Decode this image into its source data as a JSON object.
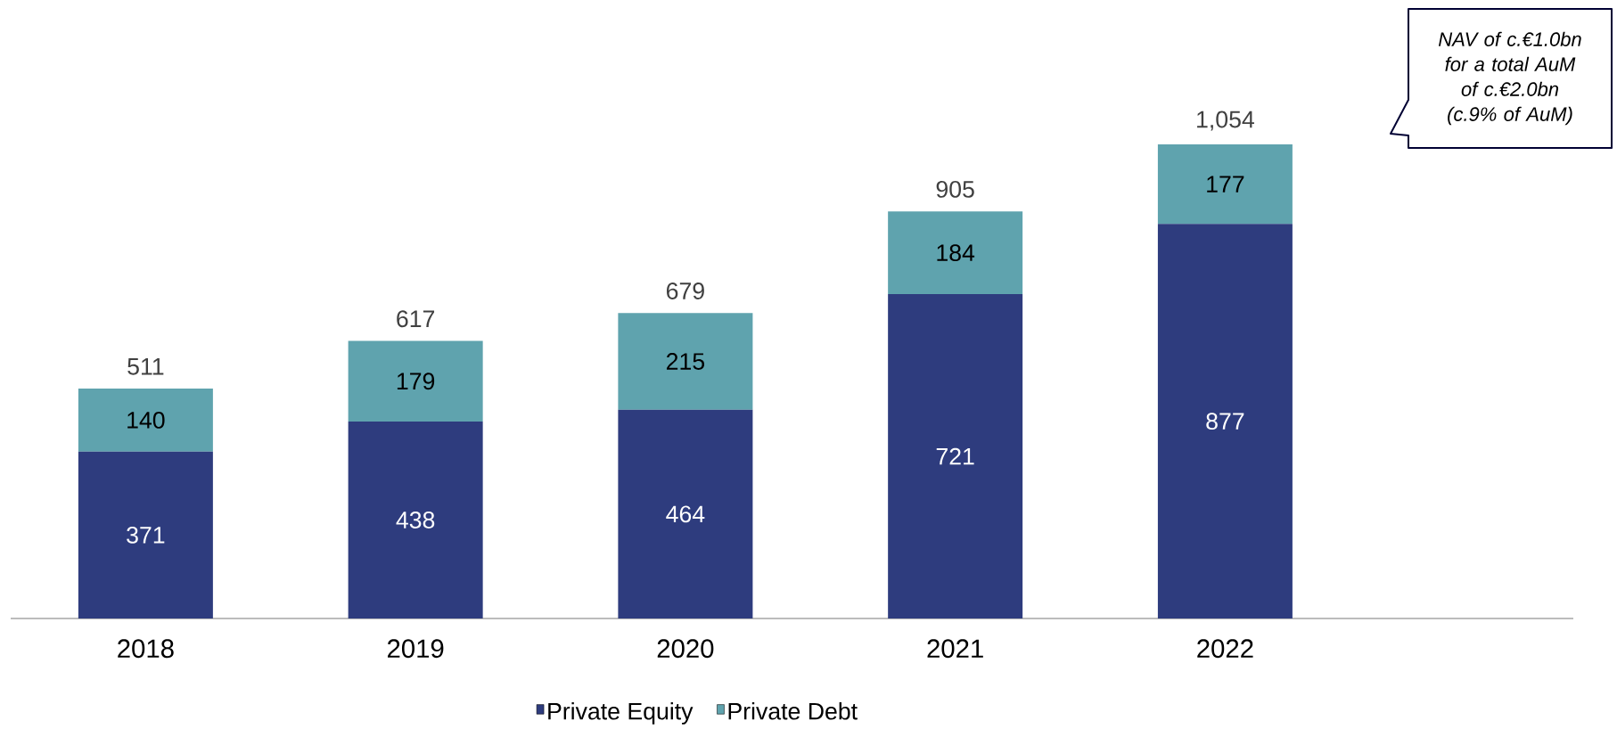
{
  "chart_data": {
    "type": "bar",
    "stacked": true,
    "data_labels": true,
    "legend": "bottom",
    "categories": [
      "2018",
      "2019",
      "2020",
      "2021",
      "2022"
    ],
    "series": [
      {
        "name": "Private Equity",
        "color": "#2e3c7e",
        "values": [
          371,
          438,
          464,
          721,
          877
        ]
      },
      {
        "name": "Private Debt",
        "color": "#5fa3ae",
        "values": [
          140,
          179,
          215,
          184,
          177
        ]
      }
    ],
    "totals": [
      "511",
      "617",
      "679",
      "905",
      "1,054"
    ],
    "annotations": [
      "NAV of c.€1.0bn for a total AuM of c.€2.0bn (c.9% of AuM)"
    ]
  }
}
